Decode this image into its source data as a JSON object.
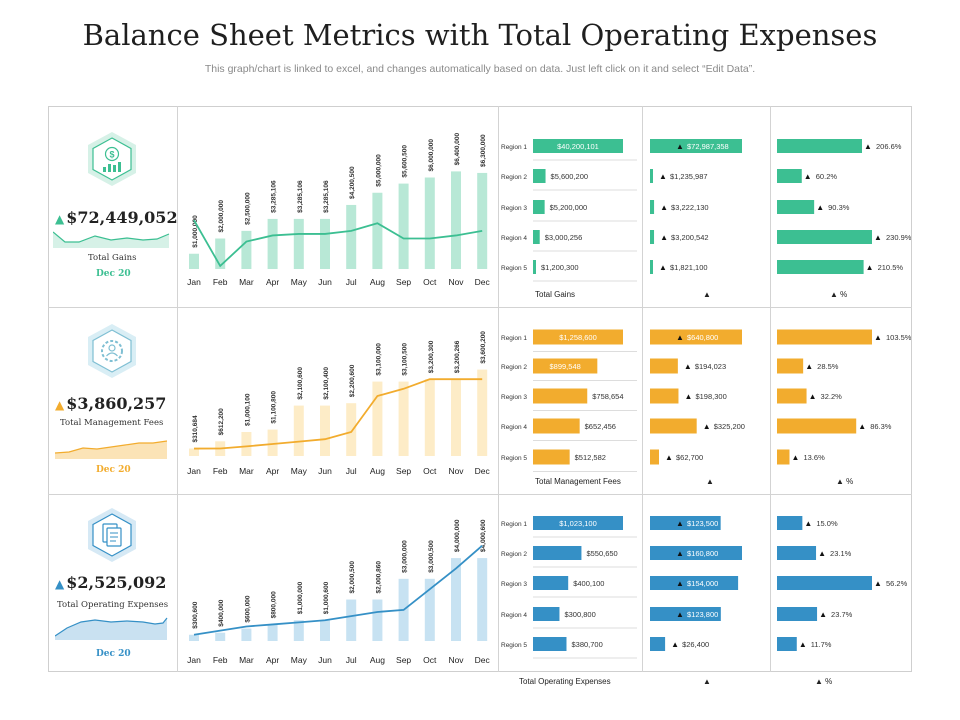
{
  "header": {
    "title": "Balance Sheet Metrics with Total Operating Expenses",
    "subtitle": "This graph/chart is linked to excel, and changes automatically based on data. Just left click on it and select “Edit Data”."
  },
  "colors": {
    "gains": "#3cbf92",
    "fees": "#f2ac2e",
    "opex": "#3590c6"
  },
  "kpis": [
    {
      "value": "$72,449,052",
      "arrow": "▲",
      "label": "Total Gains",
      "date": "Dec 20",
      "icon": "chart-money-icon"
    },
    {
      "value": "$3,860,257",
      "arrow": "▲",
      "label": "Total Management Fees",
      "date": "Dec 20",
      "icon": "person-gear-icon"
    },
    {
      "value": "$2,525,092",
      "arrow": "▲",
      "label": "Total Operating Expenses",
      "date": "Dec 20",
      "icon": "document-icon"
    }
  ],
  "chart_data": [
    {
      "type": "bar",
      "title": "Total Gains",
      "categories": [
        "Jan",
        "Feb",
        "Mar",
        "Apr",
        "May",
        "Jun",
        "Jul",
        "Aug",
        "Sep",
        "Oct",
        "Nov",
        "Dec"
      ],
      "values": [
        1000000,
        2000000,
        2500000,
        3285106,
        3285106,
        3285106,
        4200500,
        5000000,
        5600500,
        6000000,
        6400000,
        6300000
      ],
      "value_labels": [
        "$1,000,000",
        "$2,000,000",
        "$2,500,000",
        "$3,285,106",
        "$3,285,106",
        "$3,285,106",
        "$4,200,500",
        "$5,000,000",
        "$5,600,500",
        "$6,000,000",
        "$6,400,000",
        "$6,300,000"
      ],
      "line": [
        3200000,
        200000,
        1800000,
        2200000,
        2300000,
        2300000,
        2500000,
        3000000,
        2000000,
        2000000,
        2200000,
        2500000
      ],
      "ylim": [
        0,
        8000000
      ]
    },
    {
      "type": "bar",
      "title": "Total Management Fees",
      "categories": [
        "Jan",
        "Feb",
        "Mar",
        "Apr",
        "May",
        "Jun",
        "Jul",
        "Aug",
        "Sep",
        "Oct",
        "Nov",
        "Dec"
      ],
      "values": [
        310684,
        612200,
        1000100,
        1100800,
        2100600,
        2100400,
        2200600,
        3100000,
        3100500,
        3200300,
        3200266,
        3600200
      ],
      "value_labels": [
        "$310,684",
        "$612,200",
        "$1,000,100",
        "$1,100,800",
        "$2,100,600",
        "$2,100,400",
        "$2,200,600",
        "$3,100,000",
        "$3,100,500",
        "$3,200,300",
        "$3,200,266",
        "$3,600,200"
      ],
      "line": [
        310684,
        312000,
        400000,
        500000,
        600000,
        700000,
        1000000,
        2500000,
        2800000,
        3200300,
        3200266,
        3200000
      ],
      "ylim": [
        0,
        4500000
      ]
    },
    {
      "type": "bar",
      "title": "Total Operating Expenses",
      "categories": [
        "Jan",
        "Feb",
        "Mar",
        "Apr",
        "May",
        "Jun",
        "Jul",
        "Aug",
        "Sep",
        "Oct",
        "Nov",
        "Dec"
      ],
      "values": [
        300600,
        400000,
        600000,
        800000,
        1000000,
        1000600,
        2000500,
        2000860,
        3000000,
        3000500,
        4000000,
        4000600
      ],
      "value_labels": [
        "$300,600",
        "$400,000",
        "$600,000",
        "$800,000",
        "$1,000,000",
        "$1,000,600",
        "$2,000,500",
        "$2,000,860",
        "$3,000,000",
        "$3,000,500",
        "$4,000,000",
        "$4,000,600"
      ],
      "line": [
        300000,
        500000,
        700000,
        800000,
        900000,
        1000000,
        1200000,
        1400000,
        1500000,
        2500000,
        3500000,
        4600000
      ],
      "ylim": [
        0,
        5500000
      ]
    }
  ],
  "regions": [
    {
      "labels": [
        "Region 1",
        "Region 2",
        "Region 3",
        "Region 4",
        "Region 5"
      ],
      "footer": "Total Gains",
      "footer_arrow": "▲",
      "footer_pct": "▲ %",
      "col1": [
        {
          "v": 40200101,
          "t": "$40,200,101"
        },
        {
          "v": 5600200,
          "t": "$5,600,200"
        },
        {
          "v": 5200000,
          "t": "$5,200,000"
        },
        {
          "v": 3000256,
          "t": "$3,000,256"
        },
        {
          "v": 1200300,
          "t": "$1,200,300"
        }
      ],
      "col2": [
        {
          "v": 72987358,
          "t": "$72,987,358"
        },
        {
          "v": 1235987,
          "t": "$1,235,987"
        },
        {
          "v": 3222130,
          "t": "$3,222,130"
        },
        {
          "v": 3200542,
          "t": "$3,200,542"
        },
        {
          "v": 1821100,
          "t": "$1,821,100"
        }
      ],
      "col3": [
        {
          "v": 206.6,
          "t": "206.6%"
        },
        {
          "v": 60.2,
          "t": "60.2%"
        },
        {
          "v": 90.3,
          "t": "90.3%"
        },
        {
          "v": 230.9,
          "t": "230.9%"
        },
        {
          "v": 210.5,
          "t": "210.5%"
        }
      ],
      "max1": 40200101,
      "max2": 72987358,
      "max3": 230.9
    },
    {
      "labels": [
        "Region 1",
        "Region 2",
        "Region 3",
        "Region 4",
        "Region 5"
      ],
      "footer": "Total Management Fees",
      "footer_arrow": "▲",
      "footer_pct": "▲ %",
      "col1": [
        {
          "v": 1258600,
          "t": "$1,258,600"
        },
        {
          "v": 899548,
          "t": "$899,548"
        },
        {
          "v": 758654,
          "t": "$758,654"
        },
        {
          "v": 652456,
          "t": "$652,456"
        },
        {
          "v": 512582,
          "t": "$512,582"
        }
      ],
      "col2": [
        {
          "v": 640800,
          "t": "$640,800"
        },
        {
          "v": 194023,
          "t": "$194,023"
        },
        {
          "v": 198300,
          "t": "$198,300"
        },
        {
          "v": 325200,
          "t": "$325,200"
        },
        {
          "v": 62700,
          "t": "$62,700"
        }
      ],
      "col3": [
        {
          "v": 103.5,
          "t": "103.5%"
        },
        {
          "v": 28.5,
          "t": "28.5%"
        },
        {
          "v": 32.2,
          "t": "32.2%"
        },
        {
          "v": 86.3,
          "t": "86.3%"
        },
        {
          "v": 13.6,
          "t": "13.6%"
        }
      ],
      "max1": 1258600,
      "max2": 640800,
      "max3": 103.5
    },
    {
      "labels": [
        "Region 1",
        "Region 2",
        "Region 3",
        "Region 4",
        "Region 5"
      ],
      "footer": "Total Operating Expenses",
      "footer_arrow": "▲",
      "footer_pct": "▲ %",
      "col1": [
        {
          "v": 1023100,
          "t": "$1,023,100"
        },
        {
          "v": 550650,
          "t": "$550,650"
        },
        {
          "v": 400100,
          "t": "$400,100"
        },
        {
          "v": 300800,
          "t": "$300,800"
        },
        {
          "v": 380700,
          "t": "$380,700"
        }
      ],
      "col2": [
        {
          "v": 123500,
          "t": "$123,500"
        },
        {
          "v": 160800,
          "t": "$160,800"
        },
        {
          "v": 154000,
          "t": "$154,000"
        },
        {
          "v": 123800,
          "t": "$123,800"
        },
        {
          "v": 26400,
          "t": "$26,400"
        }
      ],
      "col3": [
        {
          "v": 15.0,
          "t": "15.0%"
        },
        {
          "v": 23.1,
          "t": "23.1%"
        },
        {
          "v": 56.2,
          "t": "56.2%"
        },
        {
          "v": 23.7,
          "t": "23.7%"
        },
        {
          "v": 11.7,
          "t": "11.7%"
        }
      ],
      "max1": 1023100,
      "max2": 160800,
      "max3": 56.2
    }
  ]
}
